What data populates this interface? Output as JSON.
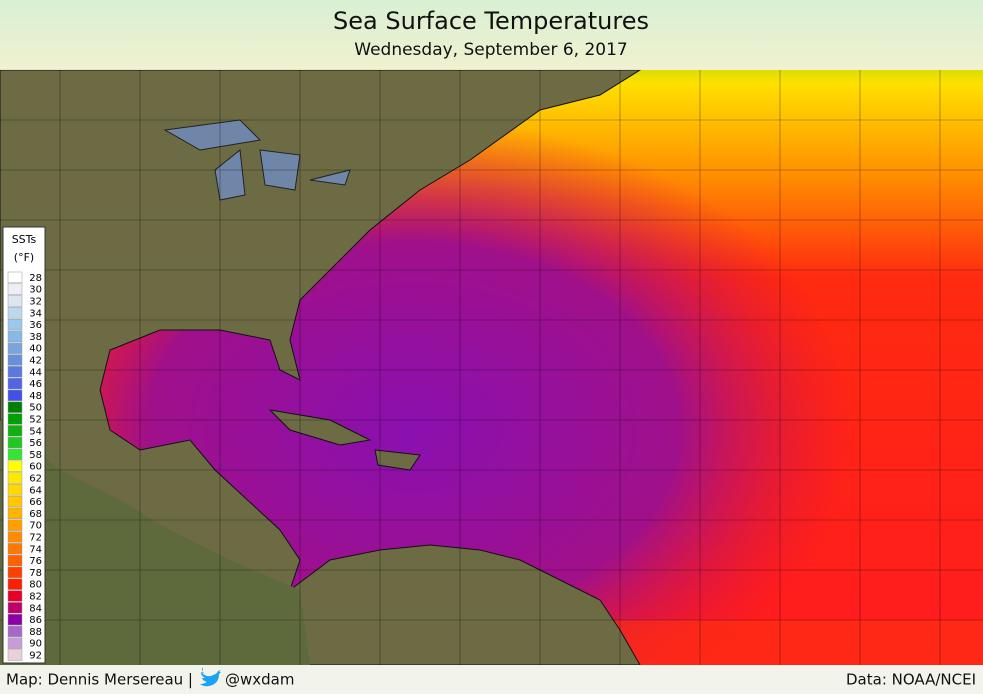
{
  "header": {
    "title": "Sea Surface Temperatures",
    "subtitle": "Wednesday, September 6, 2017"
  },
  "legend": {
    "title": "SSTs",
    "unit": "(°F)",
    "items": [
      {
        "value": 28,
        "color": "#ffffff"
      },
      {
        "value": 30,
        "color": "#eeeef8"
      },
      {
        "value": 32,
        "color": "#dde4f2"
      },
      {
        "value": 34,
        "color": "#bcd8ee"
      },
      {
        "value": 36,
        "color": "#9cc8ea"
      },
      {
        "value": 38,
        "color": "#88b8e6"
      },
      {
        "value": 40,
        "color": "#7aa4de"
      },
      {
        "value": 42,
        "color": "#6890da"
      },
      {
        "value": 44,
        "color": "#5a78de"
      },
      {
        "value": 46,
        "color": "#5264e6"
      },
      {
        "value": 48,
        "color": "#4050e8"
      },
      {
        "value": 50,
        "color": "#008000"
      },
      {
        "value": 52,
        "color": "#00a000"
      },
      {
        "value": 54,
        "color": "#10b010"
      },
      {
        "value": 56,
        "color": "#22c822"
      },
      {
        "value": 58,
        "color": "#33e633"
      },
      {
        "value": 60,
        "color": "#ffff00"
      },
      {
        "value": 62,
        "color": "#ffe800"
      },
      {
        "value": 64,
        "color": "#ffd800"
      },
      {
        "value": 66,
        "color": "#ffc800"
      },
      {
        "value": 68,
        "color": "#ffb400"
      },
      {
        "value": 70,
        "color": "#ffa000"
      },
      {
        "value": 72,
        "color": "#ff8c00"
      },
      {
        "value": 74,
        "color": "#ff7800"
      },
      {
        "value": 76,
        "color": "#ff6000"
      },
      {
        "value": 78,
        "color": "#ff4000"
      },
      {
        "value": 80,
        "color": "#ff1e00"
      },
      {
        "value": 82,
        "color": "#e80028"
      },
      {
        "value": 84,
        "color": "#c0006a"
      },
      {
        "value": 86,
        "color": "#8c00a6"
      },
      {
        "value": 88,
        "color": "#a868c8"
      },
      {
        "value": 90,
        "color": "#c89cd8"
      },
      {
        "value": 92,
        "color": "#ecd0d8"
      }
    ]
  },
  "footer": {
    "credit": "Map: Dennis Mersereau |",
    "handle": "@wxdam",
    "source": "Data: NOAA/NCEI"
  }
}
